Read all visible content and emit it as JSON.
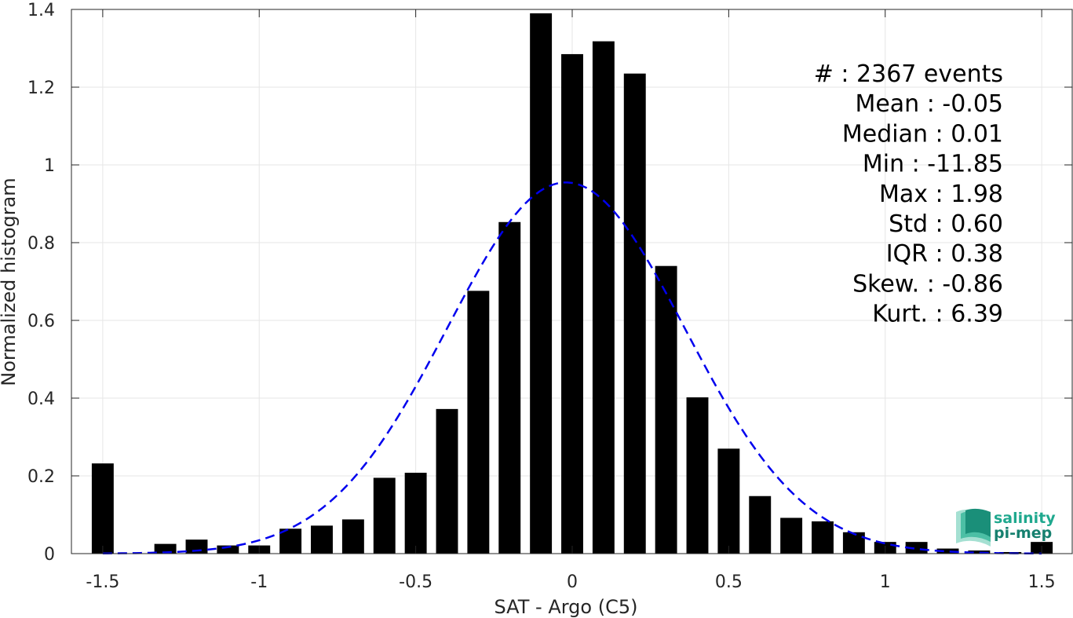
{
  "chart_data": {
    "type": "bar",
    "xlabel": "SAT - Argo (C5)",
    "ylabel": "Normalized histogram",
    "xlim": [
      -1.6,
      1.6
    ],
    "ylim": [
      0,
      1.4
    ],
    "xticks": [
      -1.5,
      -1,
      -0.5,
      0,
      0.5,
      1,
      1.5
    ],
    "xtick_labels": [
      "-1.5",
      "-1",
      "-0.5",
      "0",
      "0.5",
      "1",
      "1.5"
    ],
    "yticks": [
      0,
      0.2,
      0.4,
      0.6,
      0.8,
      1,
      1.2,
      1.4
    ],
    "ytick_labels": [
      "0",
      "0.2",
      "0.4",
      "0.6",
      "0.8",
      "1",
      "1.2",
      "1.4"
    ],
    "grid": true,
    "bar_width": 0.07,
    "x": [
      -1.5,
      -1.4,
      -1.3,
      -1.2,
      -1.1,
      -1.0,
      -0.9,
      -0.8,
      -0.7,
      -0.6,
      -0.5,
      -0.4,
      -0.3,
      -0.2,
      -0.1,
      0.0,
      0.1,
      0.2,
      0.3,
      0.4,
      0.5,
      0.6,
      0.7,
      0.8,
      0.9,
      1.0,
      1.1,
      1.2,
      1.3,
      1.4,
      1.5
    ],
    "values": [
      0.232,
      0.0,
      0.025,
      0.036,
      0.021,
      0.021,
      0.064,
      0.072,
      0.088,
      0.195,
      0.208,
      0.372,
      0.676,
      0.853,
      1.39,
      1.285,
      1.318,
      1.235,
      0.74,
      0.402,
      0.27,
      0.148,
      0.092,
      0.083,
      0.055,
      0.03,
      0.03,
      0.013,
      0.008,
      0.004,
      0.03
    ],
    "fit_curve": {
      "type": "gaussian",
      "mean": -0.02,
      "amplitude": 0.955,
      "std": 0.38,
      "x_range": [
        -1.5,
        1.5
      ],
      "color": "#0000ee",
      "style": "dashed"
    },
    "bar_color": "#000000",
    "stats_lines": [
      "#  : 2367 events",
      "Mean : -0.05",
      "Median : 0.01",
      "Min : -11.85",
      "Max : 1.98",
      "Std : 0.60",
      "IQR : 0.38",
      "Skew. : -0.86",
      "Kurt. : 6.39"
    ]
  },
  "logo": {
    "line1": "salinity",
    "line2": "pi-mep",
    "color1": "#1fa88e",
    "color2": "#16806f"
  }
}
